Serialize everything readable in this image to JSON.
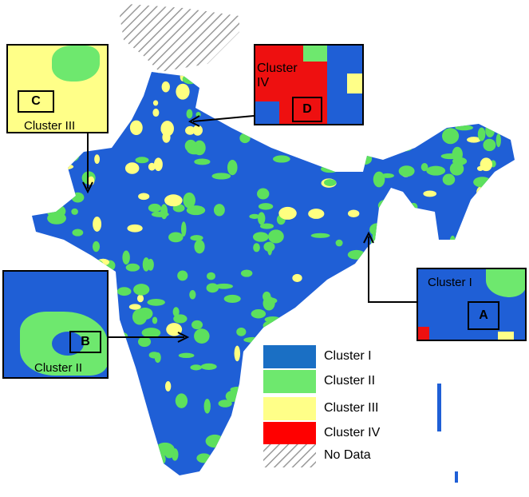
{
  "insets": [
    {
      "box": "C",
      "label": "Cluster III"
    },
    {
      "box": "D",
      "label": "Cluster IV"
    },
    {
      "box": "A",
      "label": "Cluster I"
    },
    {
      "box": "B",
      "label": "Cluster II"
    }
  ],
  "legend": [
    {
      "label": "Cluster I",
      "color": "#1a6fc4"
    },
    {
      "label": "Cluster II",
      "color": "#6ee86e"
    },
    {
      "label": "Cluster III",
      "color": "#ffff88"
    },
    {
      "label": "Cluster IV",
      "color": "#ff0000"
    },
    {
      "label": "No Data"
    }
  ]
}
